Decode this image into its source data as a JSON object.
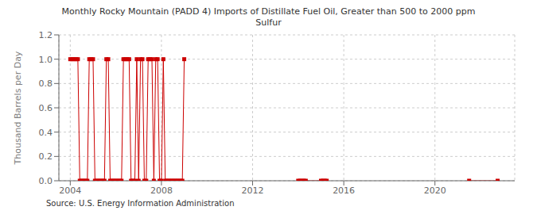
{
  "chart_data": {
    "type": "line",
    "title": "Monthly Rocky Mountain (PADD 4) Imports of Distillate Fuel Oil, Greater than 500 to 2000 ppm\nSulfur",
    "ylabel": "Thousand Barrels per Day",
    "annotations": [
      "Source: U.S. Energy Information Administration"
    ],
    "color": "#cc0000",
    "marker": "square",
    "line_style": "solid",
    "grid": true,
    "xlim": [
      2003.5,
      2023.5
    ],
    "xticks": [
      2004,
      2008,
      2012,
      2016,
      2020
    ],
    "ylim": [
      0.0,
      1.2
    ],
    "yticks": [
      {
        "value": 0,
        "label": "0.0"
      },
      0.2,
      0.4,
      0.6,
      0.8,
      {
        "value": 1,
        "label": "1.0"
      },
      1.2
    ],
    "series": [
      {
        "x": [
          2004.0,
          2004.083,
          2004.167,
          2004.25,
          2004.333,
          2004.417,
          2004.5,
          2004.583,
          2004.667,
          2004.75,
          2004.833,
          2004.917,
          2005.0,
          2005.083,
          2005.167,
          2005.25,
          2005.333,
          2005.417,
          2005.5,
          2005.583,
          2005.667,
          2005.75,
          2005.833,
          2005.917,
          2006.0,
          2006.083,
          2006.167,
          2006.25,
          2006.333,
          2006.417,
          2006.5,
          2006.583,
          2006.667,
          2006.75,
          2006.833,
          2006.917,
          2007.0,
          2007.083,
          2007.167,
          2007.25,
          2007.333,
          2007.417,
          2007.5,
          2007.583,
          2007.667,
          2007.75,
          2007.833,
          2007.917,
          2008.0,
          2008.083,
          2008.167,
          2008.25,
          2008.333,
          2008.417,
          2008.5,
          2008.583,
          2008.667,
          2008.75,
          2008.833,
          2008.917,
          2009.0
        ],
        "values": [
          1.0,
          1.0,
          1.0,
          1.0,
          1.0,
          0.0,
          0.0,
          0.0,
          0.0,
          0.0,
          1.0,
          1.0,
          1.0,
          0.0,
          0.0,
          0.0,
          0.0,
          0.0,
          0.0,
          1.0,
          1.0,
          0.0,
          0.0,
          0.0,
          0.0,
          0.0,
          0.0,
          0.0,
          1.0,
          1.0,
          1.0,
          1.0,
          0.0,
          0.0,
          0.0,
          1.0,
          0.0,
          1.0,
          1.0,
          0.0,
          0.0,
          1.0,
          1.0,
          1.0,
          0.0,
          1.0,
          1.0,
          0.0,
          0.0,
          1.0,
          0.0,
          0.0,
          0.0,
          0.0,
          0.0,
          0.0,
          0.0,
          0.0,
          0.0,
          0.0,
          1.0
        ]
      },
      {
        "x": [
          2014.0,
          2014.083,
          2014.167,
          2014.25,
          2014.333,
          2015.0,
          2015.083,
          2015.167,
          2015.25
        ],
        "values": [
          0.0,
          0.0,
          0.0,
          0.0,
          0.0,
          0.0,
          0.0,
          0.0,
          0.0
        ]
      },
      {
        "x": [
          2021.5,
          2022.75
        ],
        "values": [
          0.0,
          0.0
        ]
      }
    ]
  }
}
